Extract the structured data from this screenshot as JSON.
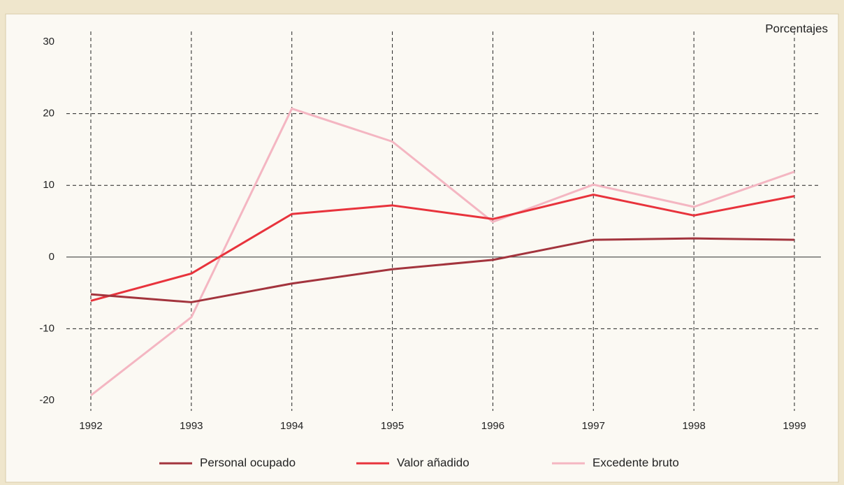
{
  "chart_data": {
    "type": "line",
    "unit_label": "Porcentajes",
    "categories": [
      "1992",
      "1993",
      "1994",
      "1995",
      "1996",
      "1997",
      "1998",
      "1999"
    ],
    "series": [
      {
        "name": "Personal ocupado",
        "color": "#a3343d",
        "values": [
          -5.2,
          -6.3,
          -3.7,
          -1.7,
          -0.4,
          2.4,
          2.6,
          2.4
        ]
      },
      {
        "name": "Valor añadido",
        "color": "#e8333c",
        "values": [
          -6.1,
          -2.3,
          6.0,
          7.2,
          5.3,
          8.7,
          5.8,
          8.5
        ]
      },
      {
        "name": "Excedente bruto",
        "color": "#f4b6c2",
        "values": [
          -19.3,
          -8.4,
          20.7,
          16.1,
          4.9,
          10.1,
          7.0,
          11.9
        ]
      }
    ],
    "ylim": [
      -20,
      30
    ],
    "yticks": [
      -20,
      -10,
      0,
      10,
      20,
      30
    ],
    "grid": true,
    "legend": "bottom"
  }
}
